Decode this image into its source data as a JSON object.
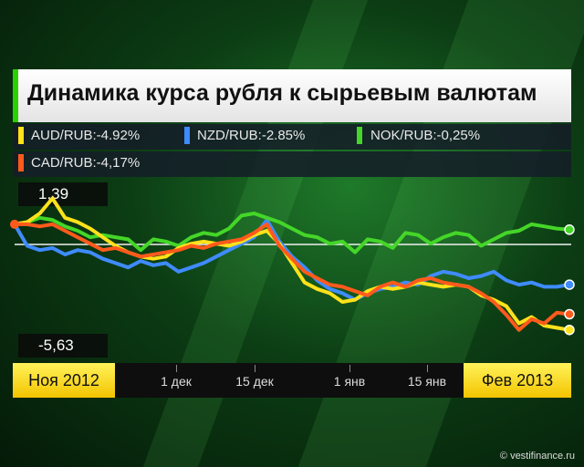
{
  "chart_data": {
    "type": "line",
    "title": "Динамика курса рубля к сырьевым валютам",
    "x_start_label": "Ноя 2012",
    "x_end_label": "Фев 2013",
    "x_ticks": [
      "1 дек",
      "15 дек",
      "1 янв",
      "15 янв"
    ],
    "y_top_label": "1,39",
    "y_bottom_label": "-5,63",
    "ylim": [
      -5.63,
      1.39
    ],
    "series": [
      {
        "name": "AUD/RUB:-4.92%",
        "color": "#ffe21a",
        "values": [
          0,
          0.1,
          0.5,
          1.2,
          0.3,
          0.1,
          -0.2,
          -0.6,
          -1.0,
          -1.3,
          -1.5,
          -1.6,
          -1.5,
          -1.1,
          -0.9,
          -0.8,
          -0.9,
          -1.0,
          -0.8,
          -0.5,
          -0.3,
          -0.9,
          -1.8,
          -2.7,
          -3.0,
          -3.2,
          -3.6,
          -3.5,
          -3.1,
          -2.9,
          -3.0,
          -2.9,
          -2.7,
          -2.8,
          -2.9,
          -2.8,
          -2.9,
          -3.3,
          -3.5,
          -3.8,
          -4.6,
          -4.3,
          -4.7,
          -4.8,
          -4.9
        ]
      },
      {
        "name": "NZD/RUB:-2.85%",
        "color": "#3f8bff",
        "values": [
          0,
          -1.0,
          -1.2,
          -1.1,
          -1.4,
          -1.2,
          -1.3,
          -1.6,
          -1.8,
          -2.0,
          -1.7,
          -1.9,
          -1.8,
          -2.2,
          -2.0,
          -1.8,
          -1.5,
          -1.2,
          -0.9,
          -0.6,
          0.2,
          -0.8,
          -1.5,
          -2.0,
          -2.6,
          -3.0,
          -3.2,
          -3.5,
          -3.2,
          -3.0,
          -2.9,
          -2.7,
          -2.8,
          -2.4,
          -2.2,
          -2.3,
          -2.5,
          -2.4,
          -2.2,
          -2.6,
          -2.8,
          -2.7,
          -2.9,
          -2.9,
          -2.8
        ]
      },
      {
        "name": "NOK/RUB:-0,25%",
        "color": "#44d628",
        "values": [
          0,
          0.1,
          0.3,
          0.2,
          -0.1,
          -0.3,
          -0.6,
          -0.5,
          -0.6,
          -0.7,
          -1.2,
          -0.7,
          -0.8,
          -1.0,
          -0.6,
          -0.4,
          -0.5,
          -0.2,
          0.4,
          0.5,
          0.3,
          0.1,
          -0.2,
          -0.5,
          -0.6,
          -0.9,
          -0.8,
          -1.3,
          -0.7,
          -0.8,
          -1.1,
          -0.4,
          -0.5,
          -0.9,
          -0.6,
          -0.4,
          -0.5,
          -1.0,
          -0.7,
          -0.4,
          -0.3,
          0.0,
          -0.1,
          -0.2,
          -0.25
        ]
      },
      {
        "name": "CAD/RUB:-4,17%",
        "color": "#ff5a1c",
        "values": [
          0,
          0.0,
          -0.1,
          0.0,
          -0.3,
          -0.6,
          -0.9,
          -1.2,
          -1.1,
          -1.3,
          -1.5,
          -1.4,
          -1.3,
          -1.2,
          -1.0,
          -1.1,
          -0.9,
          -0.8,
          -0.7,
          -0.4,
          0.0,
          -1.0,
          -1.6,
          -2.2,
          -2.5,
          -2.8,
          -2.9,
          -3.1,
          -3.3,
          -2.9,
          -2.7,
          -2.9,
          -2.6,
          -2.5,
          -2.7,
          -2.8,
          -2.9,
          -3.2,
          -3.6,
          -4.2,
          -4.9,
          -4.4,
          -4.6,
          -4.1,
          -4.17
        ]
      }
    ]
  },
  "watermark": "© vestifinance.ru"
}
